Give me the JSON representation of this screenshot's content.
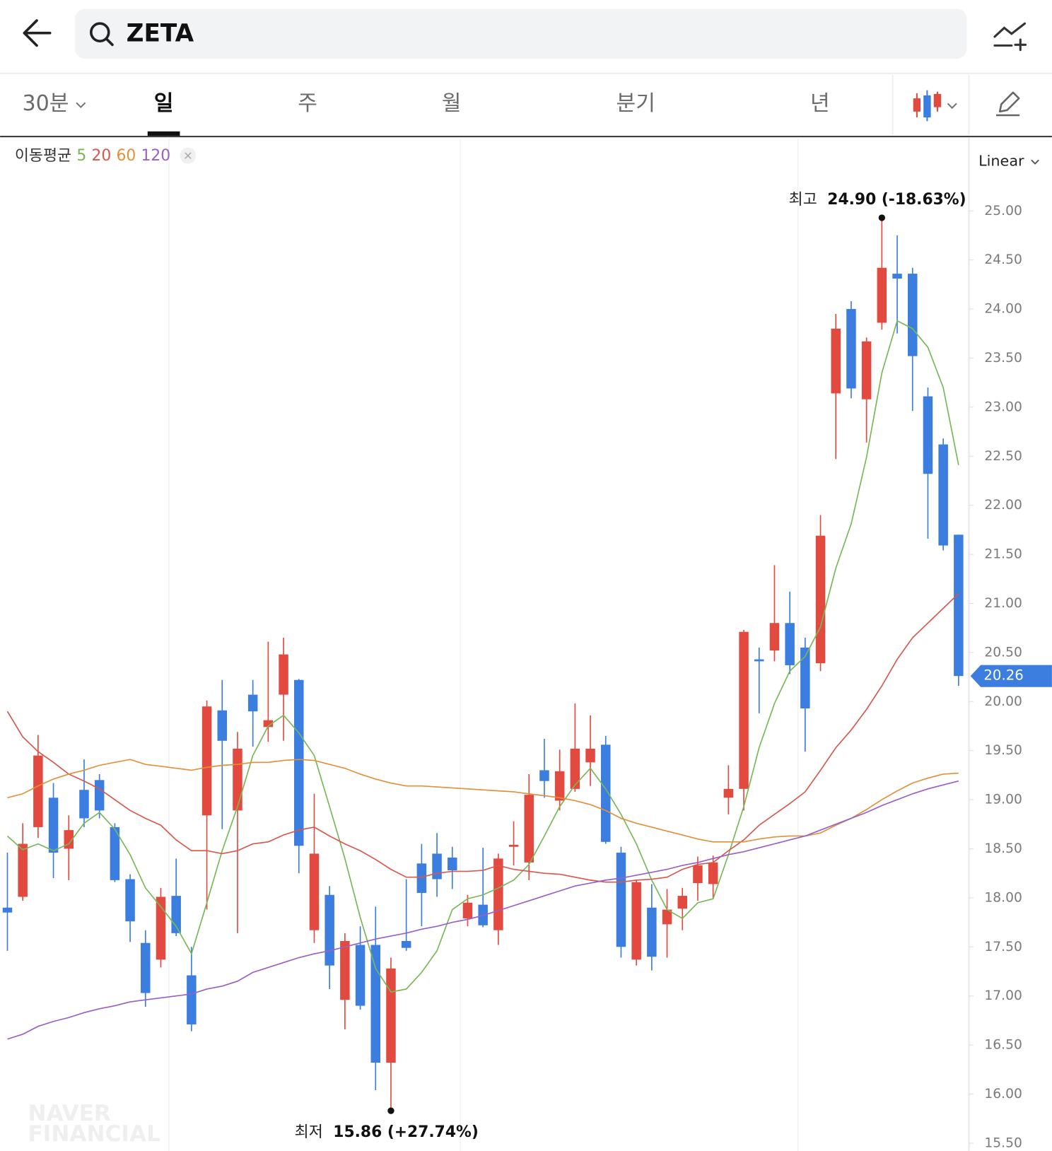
{
  "header": {
    "search": "ZETA"
  },
  "tabs": {
    "items": [
      "30분",
      "일",
      "주",
      "월",
      "분기",
      "년"
    ],
    "active": 1
  },
  "chart_data": {
    "type": "candlestick",
    "indicator_label": "이동평균",
    "scale": "Linear",
    "up_color": "#e34a3f",
    "down_color": "#3b7ee0",
    "open": [
      17.9,
      18.01,
      18.72,
      19.02,
      18.5,
      19.1,
      19.2,
      18.72,
      18.19,
      17.54,
      17.37,
      18.02,
      17.21,
      18.84,
      19.91,
      18.89,
      20.07,
      19.74,
      20.07,
      20.22,
      17.67,
      18.03,
      16.96,
      17.52,
      17.52,
      16.32,
      17.56,
      18.35,
      18.45,
      18.41,
      17.79,
      17.93,
      17.67,
      18.52,
      18.36,
      19.3,
      18.99,
      19.11,
      19.38,
      19.56,
      18.46,
      17.37,
      17.9,
      17.73,
      17.89,
      18.15,
      18.14,
      19.02,
      19.11,
      20.43,
      20.52,
      20.8,
      20.55,
      20.39,
      23.14,
      24.0,
      23.08,
      23.86,
      24.36,
      24.36,
      23.11,
      22.62,
      21.7
    ],
    "high": [
      18.46,
      18.76,
      19.66,
      19.17,
      18.84,
      19.41,
      19.26,
      18.76,
      18.24,
      17.67,
      18.1,
      18.4,
      17.5,
      20.01,
      20.22,
      19.69,
      20.22,
      20.61,
      20.65,
      20.23,
      19.06,
      18.12,
      17.64,
      17.71,
      17.91,
      17.39,
      18.19,
      18.55,
      18.66,
      18.52,
      18.03,
      18.51,
      18.45,
      18.78,
      19.26,
      19.62,
      19.51,
      19.98,
      19.86,
      19.65,
      18.52,
      18.18,
      18.14,
      18.09,
      18.1,
      18.42,
      18.43,
      19.35,
      20.73,
      20.55,
      21.39,
      21.12,
      20.65,
      21.9,
      23.95,
      24.08,
      23.71,
      24.9,
      24.75,
      24.42,
      23.2,
      22.68,
      21.7
    ],
    "low": [
      17.46,
      17.97,
      18.61,
      18.2,
      18.18,
      18.72,
      18.81,
      18.16,
      17.55,
      16.89,
      17.29,
      17.61,
      16.64,
      17.88,
      18.7,
      17.64,
      19.54,
      19.59,
      19.6,
      18.25,
      17.54,
      17.07,
      16.66,
      16.86,
      16.04,
      15.86,
      17.46,
      17.71,
      18.01,
      18.09,
      17.71,
      17.7,
      17.52,
      18.33,
      18.18,
      19.02,
      18.89,
      19.08,
      19.14,
      18.55,
      17.39,
      17.31,
      17.26,
      17.39,
      17.67,
      17.97,
      17.99,
      18.85,
      18.89,
      19.88,
      20.41,
      20.28,
      19.49,
      20.31,
      22.47,
      23.09,
      22.64,
      23.79,
      23.75,
      22.96,
      21.66,
      21.54,
      20.16
    ],
    "close": [
      17.85,
      18.55,
      19.45,
      18.46,
      18.69,
      18.81,
      18.89,
      18.18,
      17.76,
      17.03,
      18.01,
      17.64,
      16.71,
      19.95,
      19.6,
      19.52,
      19.9,
      19.81,
      20.48,
      18.53,
      18.45,
      17.31,
      17.56,
      16.9,
      16.32,
      17.28,
      17.49,
      18.05,
      18.19,
      18.28,
      17.95,
      17.72,
      18.4,
      18.54,
      19.05,
      19.19,
      19.29,
      19.52,
      19.52,
      18.57,
      17.5,
      18.16,
      17.4,
      17.88,
      18.02,
      18.33,
      18.36,
      19.11,
      20.71,
      20.41,
      20.8,
      20.37,
      19.93,
      21.69,
      23.8,
      23.19,
      23.67,
      24.42,
      24.31,
      23.52,
      22.32,
      21.59,
      20.26
    ],
    "series": [
      {
        "name": "5",
        "color": "#76b856",
        "values": [
          18.63,
          18.49,
          18.55,
          18.48,
          18.55,
          18.76,
          18.87,
          18.7,
          18.44,
          18.1,
          17.91,
          17.71,
          17.43,
          17.95,
          18.48,
          18.93,
          19.45,
          19.75,
          19.86,
          19.68,
          19.45,
          18.93,
          18.4,
          17.8,
          17.28,
          17.04,
          17.07,
          17.24,
          17.46,
          17.88,
          17.99,
          18.03,
          18.1,
          18.18,
          18.34,
          18.63,
          18.93,
          19.15,
          19.32,
          19.11,
          18.85,
          18.55,
          18.18,
          17.88,
          17.79,
          17.95,
          17.99,
          18.44,
          18.93,
          19.53,
          19.98,
          20.31,
          20.46,
          20.76,
          21.36,
          21.81,
          22.49,
          23.35,
          23.88,
          23.8,
          23.61,
          23.2,
          22.41
        ]
      },
      {
        "name": "20",
        "color": "#d9574b",
        "values": [
          19.9,
          19.64,
          19.49,
          19.38,
          19.26,
          19.19,
          19.11,
          19.0,
          18.89,
          18.81,
          18.74,
          18.59,
          18.48,
          18.48,
          18.45,
          18.48,
          18.55,
          18.57,
          18.64,
          18.69,
          18.72,
          18.63,
          18.55,
          18.48,
          18.39,
          18.29,
          18.21,
          18.21,
          18.25,
          18.27,
          18.27,
          18.28,
          18.33,
          18.29,
          18.27,
          18.25,
          18.24,
          18.21,
          18.18,
          18.16,
          18.16,
          18.18,
          18.19,
          18.21,
          18.29,
          18.34,
          18.36,
          18.48,
          18.59,
          18.74,
          18.85,
          18.96,
          19.08,
          19.3,
          19.53,
          19.71,
          19.92,
          20.16,
          20.43,
          20.65,
          20.8,
          20.95,
          21.1
        ]
      },
      {
        "name": "60",
        "color": "#e0913a",
        "values": [
          19.02,
          19.06,
          19.14,
          19.21,
          19.26,
          19.3,
          19.35,
          19.38,
          19.41,
          19.36,
          19.34,
          19.32,
          19.3,
          19.33,
          19.35,
          19.36,
          19.38,
          19.38,
          19.4,
          19.41,
          19.4,
          19.36,
          19.32,
          19.26,
          19.21,
          19.17,
          19.14,
          19.14,
          19.13,
          19.12,
          19.11,
          19.1,
          19.09,
          19.08,
          19.06,
          19.04,
          19.02,
          18.99,
          18.95,
          18.89,
          18.81,
          18.76,
          18.72,
          18.68,
          18.64,
          18.6,
          18.57,
          18.57,
          18.57,
          18.6,
          18.62,
          18.63,
          18.63,
          18.66,
          18.74,
          18.81,
          18.9,
          19.0,
          19.09,
          19.17,
          19.22,
          19.26,
          19.27
        ]
      },
      {
        "name": "120",
        "color": "#9a5fc7",
        "values": [
          16.56,
          16.61,
          16.69,
          16.74,
          16.78,
          16.83,
          16.87,
          16.9,
          16.94,
          16.96,
          16.98,
          17.0,
          17.02,
          17.07,
          17.1,
          17.15,
          17.24,
          17.29,
          17.34,
          17.39,
          17.43,
          17.46,
          17.5,
          17.54,
          17.58,
          17.61,
          17.64,
          17.68,
          17.71,
          17.75,
          17.78,
          17.82,
          17.87,
          17.92,
          17.97,
          18.02,
          18.07,
          18.12,
          18.15,
          18.18,
          18.2,
          18.23,
          18.26,
          18.29,
          18.33,
          18.36,
          18.4,
          18.44,
          18.47,
          18.51,
          18.55,
          18.59,
          18.63,
          18.69,
          18.75,
          18.81,
          18.87,
          18.94,
          19.0,
          19.06,
          19.11,
          19.15,
          19.19
        ]
      }
    ],
    "ylim": [
      15.42,
      25.75
    ],
    "yticks": [
      {
        "value": 15.5,
        "label": "15.50"
      },
      {
        "value": 16,
        "label": "16.00"
      },
      {
        "value": 16.5,
        "label": "16.50"
      },
      {
        "value": 17,
        "label": "17.00"
      },
      {
        "value": 17.5,
        "label": "17.50"
      },
      {
        "value": 18,
        "label": "18.00"
      },
      {
        "value": 18.5,
        "label": "18.50"
      },
      {
        "value": 19,
        "label": "19.00"
      },
      {
        "value": 19.5,
        "label": "19.50"
      },
      {
        "value": 20,
        "label": "20.00"
      },
      {
        "value": 20.5,
        "label": "20.50"
      },
      {
        "value": 21,
        "label": "21.00"
      },
      {
        "value": 21.5,
        "label": "21.50"
      },
      {
        "value": 22,
        "label": "22.00"
      },
      {
        "value": 22.5,
        "label": "22.50"
      },
      {
        "value": 23,
        "label": "23.00"
      },
      {
        "value": 23.5,
        "label": "23.50"
      },
      {
        "value": 24,
        "label": "24.00"
      },
      {
        "value": 24.5,
        "label": "24.50"
      },
      {
        "value": 25,
        "label": "25.00"
      }
    ],
    "last_price": 20.26,
    "high_annotation": {
      "label": "최고",
      "text": "24.90 (-18.63%)"
    },
    "low_annotation": {
      "label": "최저",
      "text": "15.86 (+27.74%)"
    },
    "watermark": [
      "NAVER",
      "FINANCIAL"
    ]
  }
}
